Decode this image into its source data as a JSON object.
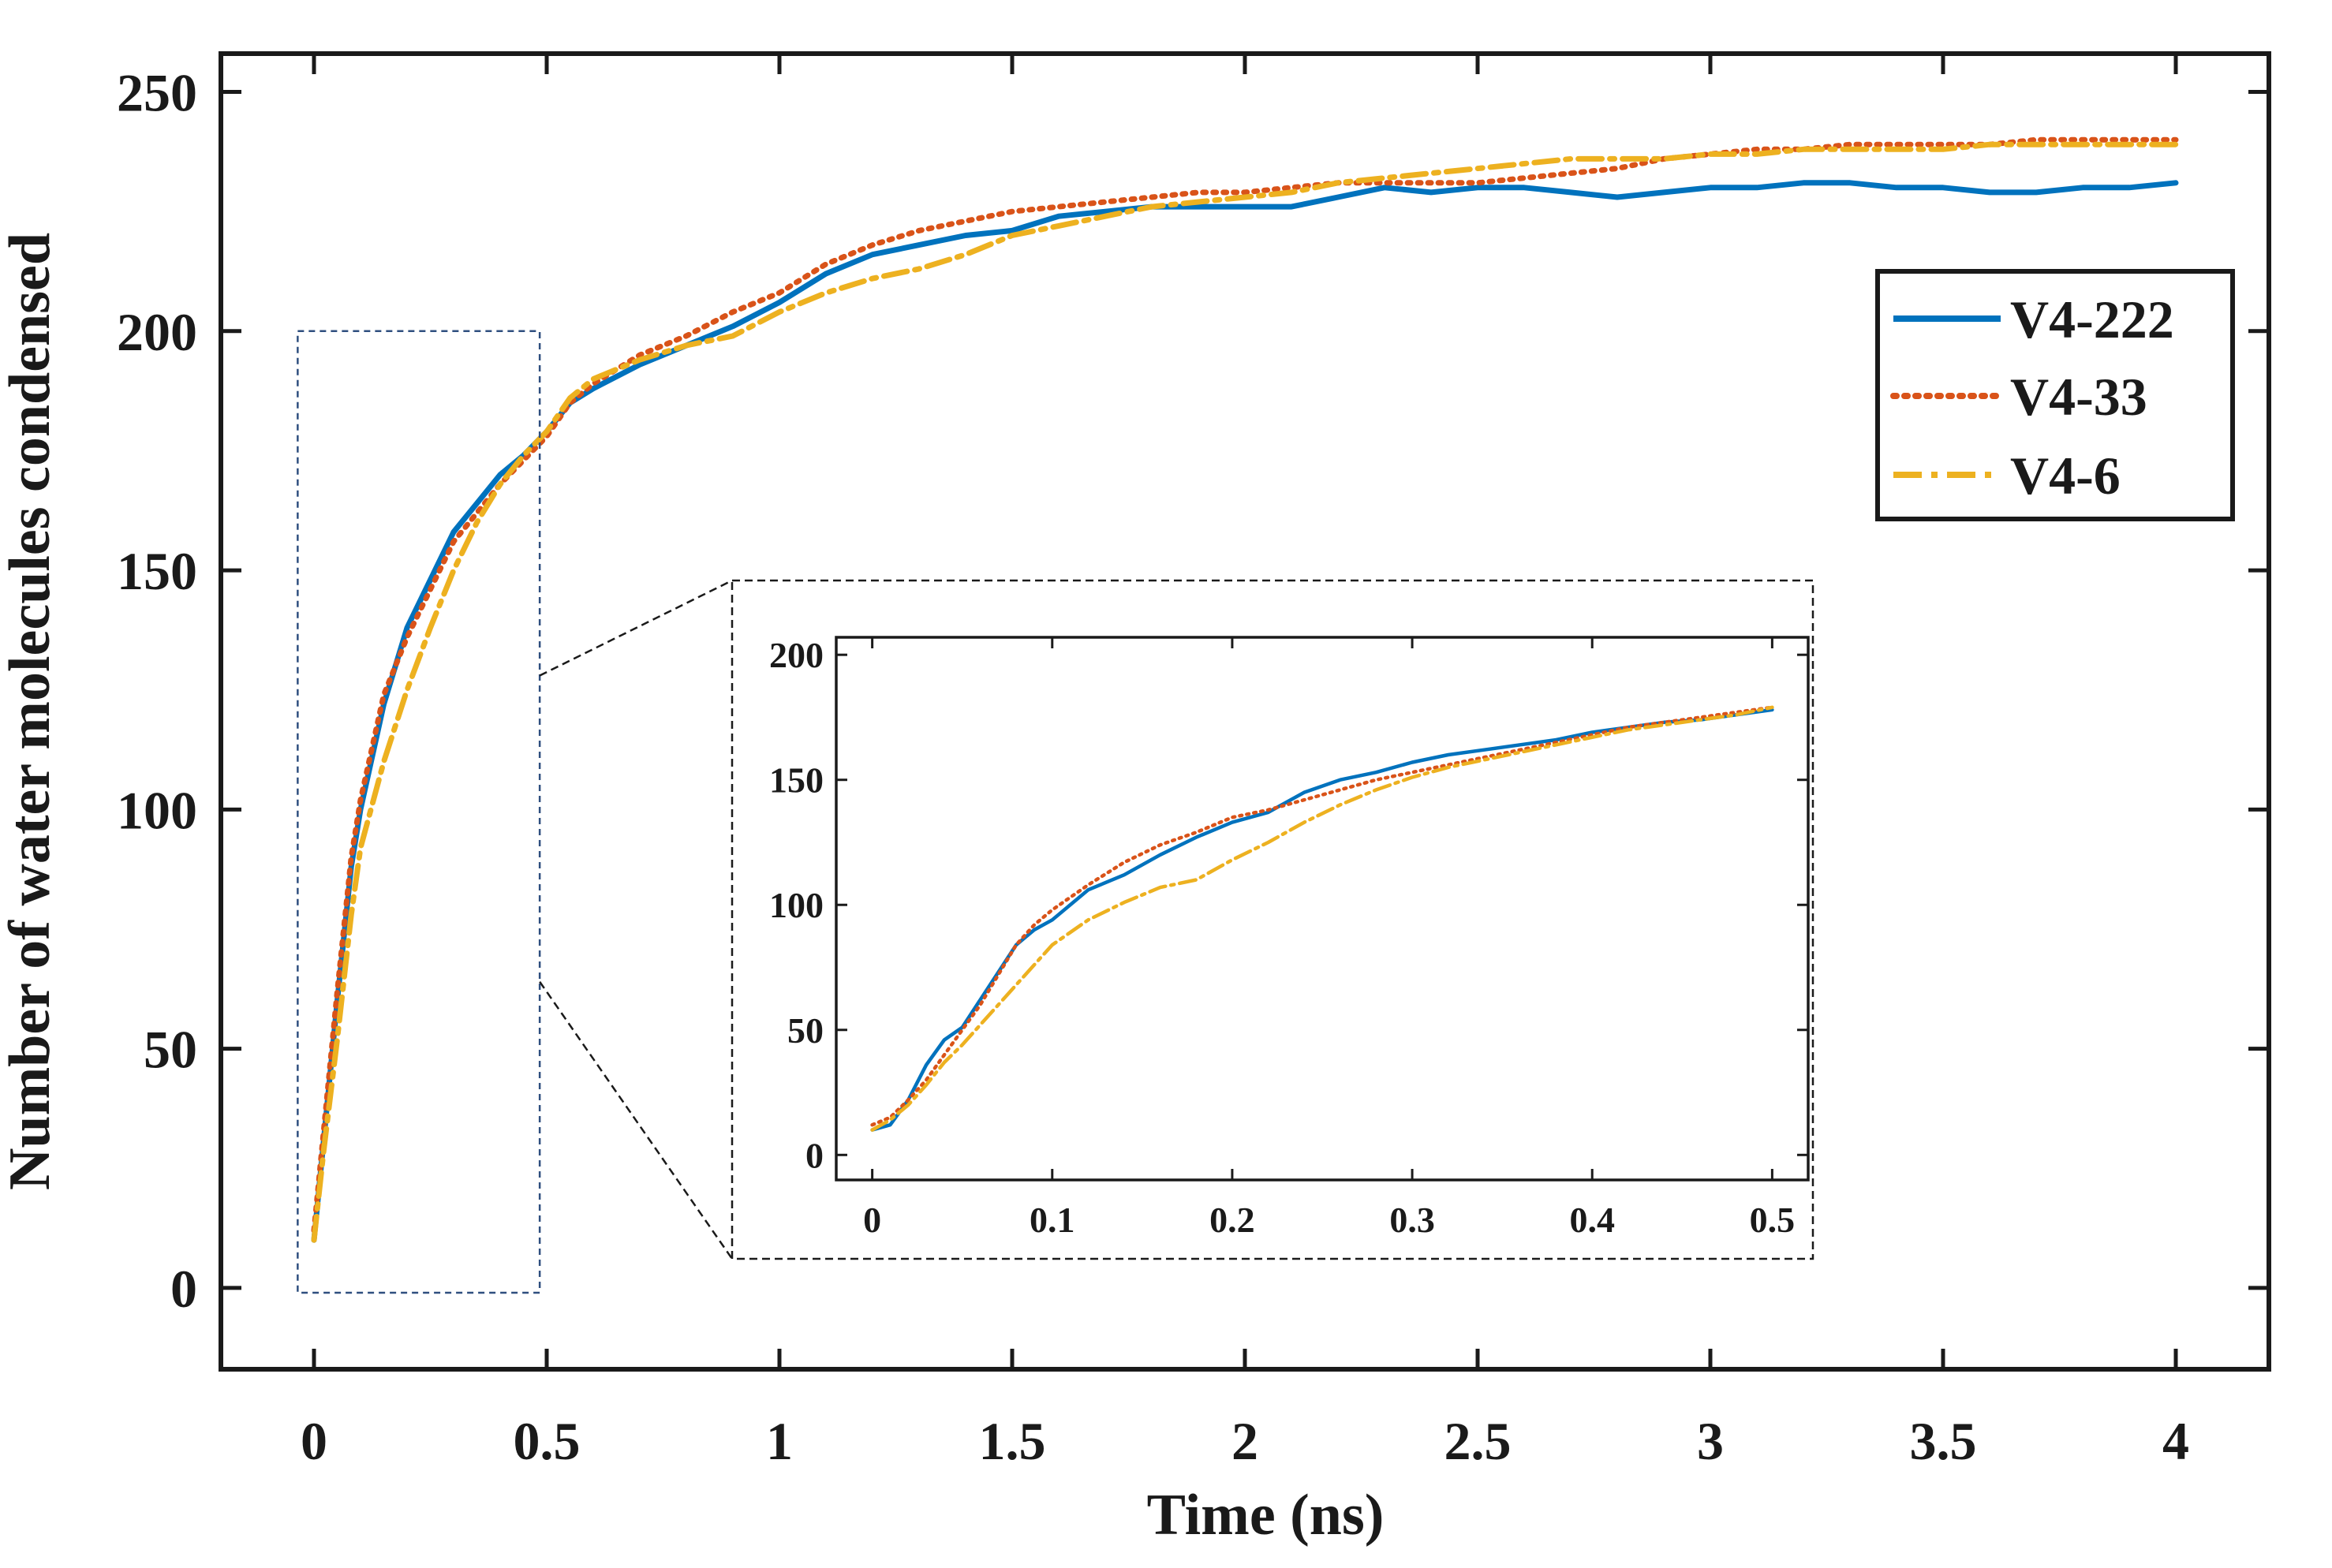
{
  "chart_data": [
    {
      "type": "line",
      "title": "",
      "xlabel": "Time (ns)",
      "ylabel": "Number of water molecules condensed",
      "xlim": [
        -0.2,
        4.2
      ],
      "ylim": [
        -17,
        258
      ],
      "xticks": [
        0,
        0.5,
        1,
        1.5,
        2,
        2.5,
        3,
        3.5,
        4
      ],
      "xtick_labels": [
        "0",
        "0.5",
        "1",
        "1.5",
        "2",
        "2.5",
        "3",
        "3.5",
        "4"
      ],
      "yticks": [
        0,
        50,
        100,
        150,
        200,
        250
      ],
      "ytick_labels": [
        "0",
        "50",
        "100",
        "150",
        "200",
        "250"
      ],
      "grid": false,
      "legend_position": "top-right",
      "zoom_box": {
        "x": [
          -0.035,
          0.485
        ],
        "y": [
          -1,
          200
        ]
      },
      "series": [
        {
          "name": "V4-222",
          "color": "#0072BD",
          "style": "solid",
          "x": [
            0,
            0.02,
            0.05,
            0.08,
            0.1,
            0.15,
            0.2,
            0.25,
            0.3,
            0.35,
            0.4,
            0.45,
            0.5,
            0.55,
            0.6,
            0.7,
            0.8,
            0.9,
            1.0,
            1.1,
            1.2,
            1.3,
            1.4,
            1.5,
            1.6,
            1.7,
            1.8,
            1.9,
            2.0,
            2.1,
            2.2,
            2.3,
            2.4,
            2.5,
            2.6,
            2.7,
            2.8,
            2.9,
            3.0,
            3.1,
            3.2,
            3.3,
            3.4,
            3.5,
            3.6,
            3.7,
            3.8,
            3.9,
            4.0
          ],
          "y": [
            10,
            30,
            60,
            88,
            100,
            122,
            138,
            148,
            158,
            164,
            170,
            174,
            179,
            185,
            188,
            193,
            197,
            201,
            206,
            212,
            216,
            218,
            220,
            221,
            224,
            225,
            226,
            226,
            226,
            226,
            228,
            230,
            229,
            230,
            230,
            229,
            228,
            229,
            230,
            230,
            231,
            231,
            230,
            230,
            229,
            229,
            230,
            230,
            231
          ]
        },
        {
          "name": "V4-33",
          "color": "#D95319",
          "style": "dotted",
          "x": [
            0,
            0.02,
            0.05,
            0.08,
            0.1,
            0.15,
            0.2,
            0.25,
            0.3,
            0.35,
            0.4,
            0.45,
            0.5,
            0.55,
            0.6,
            0.7,
            0.8,
            0.9,
            1.0,
            1.1,
            1.2,
            1.3,
            1.4,
            1.5,
            1.6,
            1.7,
            1.8,
            1.9,
            2.0,
            2.1,
            2.2,
            2.3,
            2.4,
            2.5,
            2.6,
            2.7,
            2.8,
            2.9,
            3.0,
            3.1,
            3.2,
            3.3,
            3.4,
            3.5,
            3.6,
            3.7,
            3.8,
            3.9,
            4.0
          ],
          "y": [
            12,
            32,
            62,
            90,
            102,
            124,
            136,
            146,
            156,
            162,
            168,
            173,
            178,
            185,
            189,
            195,
            199,
            204,
            208,
            214,
            218,
            221,
            223,
            225,
            226,
            227,
            228,
            229,
            229,
            230,
            231,
            231,
            231,
            231,
            232,
            233,
            234,
            236,
            237,
            238,
            238,
            239,
            239,
            239,
            239,
            240,
            240,
            240,
            240
          ]
        },
        {
          "name": "V4-6",
          "color": "#EDB120",
          "style": "dashdot",
          "x": [
            0,
            0.02,
            0.05,
            0.08,
            0.1,
            0.15,
            0.2,
            0.25,
            0.3,
            0.35,
            0.4,
            0.45,
            0.5,
            0.55,
            0.6,
            0.7,
            0.8,
            0.9,
            1.0,
            1.1,
            1.2,
            1.3,
            1.4,
            1.5,
            1.6,
            1.7,
            1.8,
            1.9,
            2.0,
            2.1,
            2.2,
            2.3,
            2.4,
            2.5,
            2.6,
            2.7,
            2.8,
            2.9,
            3.0,
            3.1,
            3.2,
            3.3,
            3.4,
            3.5,
            3.6,
            3.7,
            3.8,
            3.9,
            4.0
          ],
          "y": [
            10,
            28,
            52,
            78,
            92,
            110,
            125,
            138,
            150,
            160,
            168,
            174,
            179,
            186,
            190,
            194,
            197,
            199,
            204,
            208,
            211,
            213,
            216,
            220,
            222,
            224,
            226,
            227,
            228,
            229,
            231,
            232,
            233,
            234,
            235,
            236,
            236,
            236,
            237,
            237,
            238,
            238,
            238,
            238,
            239,
            239,
            239,
            239,
            239
          ]
        }
      ]
    },
    {
      "type": "line",
      "title": "",
      "xlabel": "",
      "ylabel": "",
      "xlim": [
        -0.02,
        0.52
      ],
      "ylim": [
        -10,
        207
      ],
      "xticks": [
        0,
        0.1,
        0.2,
        0.3,
        0.4,
        0.5
      ],
      "xtick_labels": [
        "0",
        "0.1",
        "0.2",
        "0.3",
        "0.4",
        "0.5"
      ],
      "yticks": [
        0,
        50,
        100,
        150,
        200
      ],
      "ytick_labels": [
        "0",
        "50",
        "100",
        "150",
        "200"
      ],
      "grid": false,
      "series": [
        {
          "name": "V4-222",
          "color": "#0072BD",
          "style": "solid",
          "x": [
            0,
            0.01,
            0.02,
            0.03,
            0.04,
            0.05,
            0.06,
            0.07,
            0.08,
            0.09,
            0.1,
            0.12,
            0.14,
            0.16,
            0.18,
            0.2,
            0.22,
            0.24,
            0.26,
            0.28,
            0.3,
            0.32,
            0.34,
            0.36,
            0.38,
            0.4,
            0.42,
            0.44,
            0.46,
            0.48,
            0.5
          ],
          "y": [
            10,
            12,
            22,
            36,
            46,
            51,
            62,
            73,
            84,
            90,
            94,
            106,
            112,
            120,
            127,
            133,
            137,
            145,
            150,
            153,
            157,
            160,
            162,
            164,
            166,
            169,
            171,
            173,
            174,
            176,
            178
          ]
        },
        {
          "name": "V4-33",
          "color": "#D95319",
          "style": "dotted",
          "x": [
            0,
            0.01,
            0.02,
            0.03,
            0.04,
            0.05,
            0.06,
            0.07,
            0.08,
            0.09,
            0.1,
            0.12,
            0.14,
            0.16,
            0.18,
            0.2,
            0.22,
            0.24,
            0.26,
            0.28,
            0.3,
            0.32,
            0.34,
            0.36,
            0.38,
            0.4,
            0.42,
            0.44,
            0.46,
            0.48,
            0.5
          ],
          "y": [
            12,
            15,
            22,
            30,
            40,
            50,
            60,
            72,
            84,
            92,
            98,
            108,
            117,
            124,
            129,
            135,
            138,
            142,
            146,
            150,
            153,
            156,
            159,
            162,
            165,
            168,
            171,
            173,
            175,
            177,
            179
          ]
        },
        {
          "name": "V4-6",
          "color": "#EDB120",
          "style": "dashdot",
          "x": [
            0,
            0.01,
            0.02,
            0.03,
            0.04,
            0.05,
            0.06,
            0.07,
            0.08,
            0.09,
            0.1,
            0.12,
            0.14,
            0.16,
            0.18,
            0.2,
            0.22,
            0.24,
            0.26,
            0.28,
            0.3,
            0.32,
            0.34,
            0.36,
            0.38,
            0.4,
            0.42,
            0.44,
            0.46,
            0.48,
            0.5
          ],
          "y": [
            10,
            14,
            20,
            28,
            37,
            44,
            52,
            60,
            68,
            76,
            84,
            94,
            101,
            107,
            110,
            118,
            125,
            133,
            140,
            146,
            151,
            155,
            158,
            161,
            164,
            167,
            170,
            172,
            174,
            176,
            179
          ]
        }
      ]
    }
  ]
}
